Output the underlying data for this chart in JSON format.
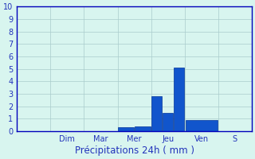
{
  "xlabel": "Précipitations 24h ( mm )",
  "background_color": "#d8f5ef",
  "bar_color": "#1155cc",
  "bar_edge_color": "#003399",
  "grid_color": "#aacccc",
  "axis_color": "#0000bb",
  "tick_label_color": "#2233bb",
  "day_labels": [
    "",
    "Dim",
    "Mar",
    "Mer",
    "Jeu",
    "Ven",
    "S"
  ],
  "num_cols": 7,
  "values_per_day": [
    [
      0
    ],
    [
      0
    ],
    [
      0
    ],
    [
      0.3,
      0.4
    ],
    [
      2.8,
      1.5,
      5.1
    ],
    [
      0.9
    ],
    [
      0
    ]
  ],
  "ylim": [
    0,
    10
  ],
  "yticks": [
    0,
    1,
    2,
    3,
    4,
    5,
    6,
    7,
    8,
    9,
    10
  ],
  "tick_fontsize": 7,
  "label_fontsize": 8.5
}
